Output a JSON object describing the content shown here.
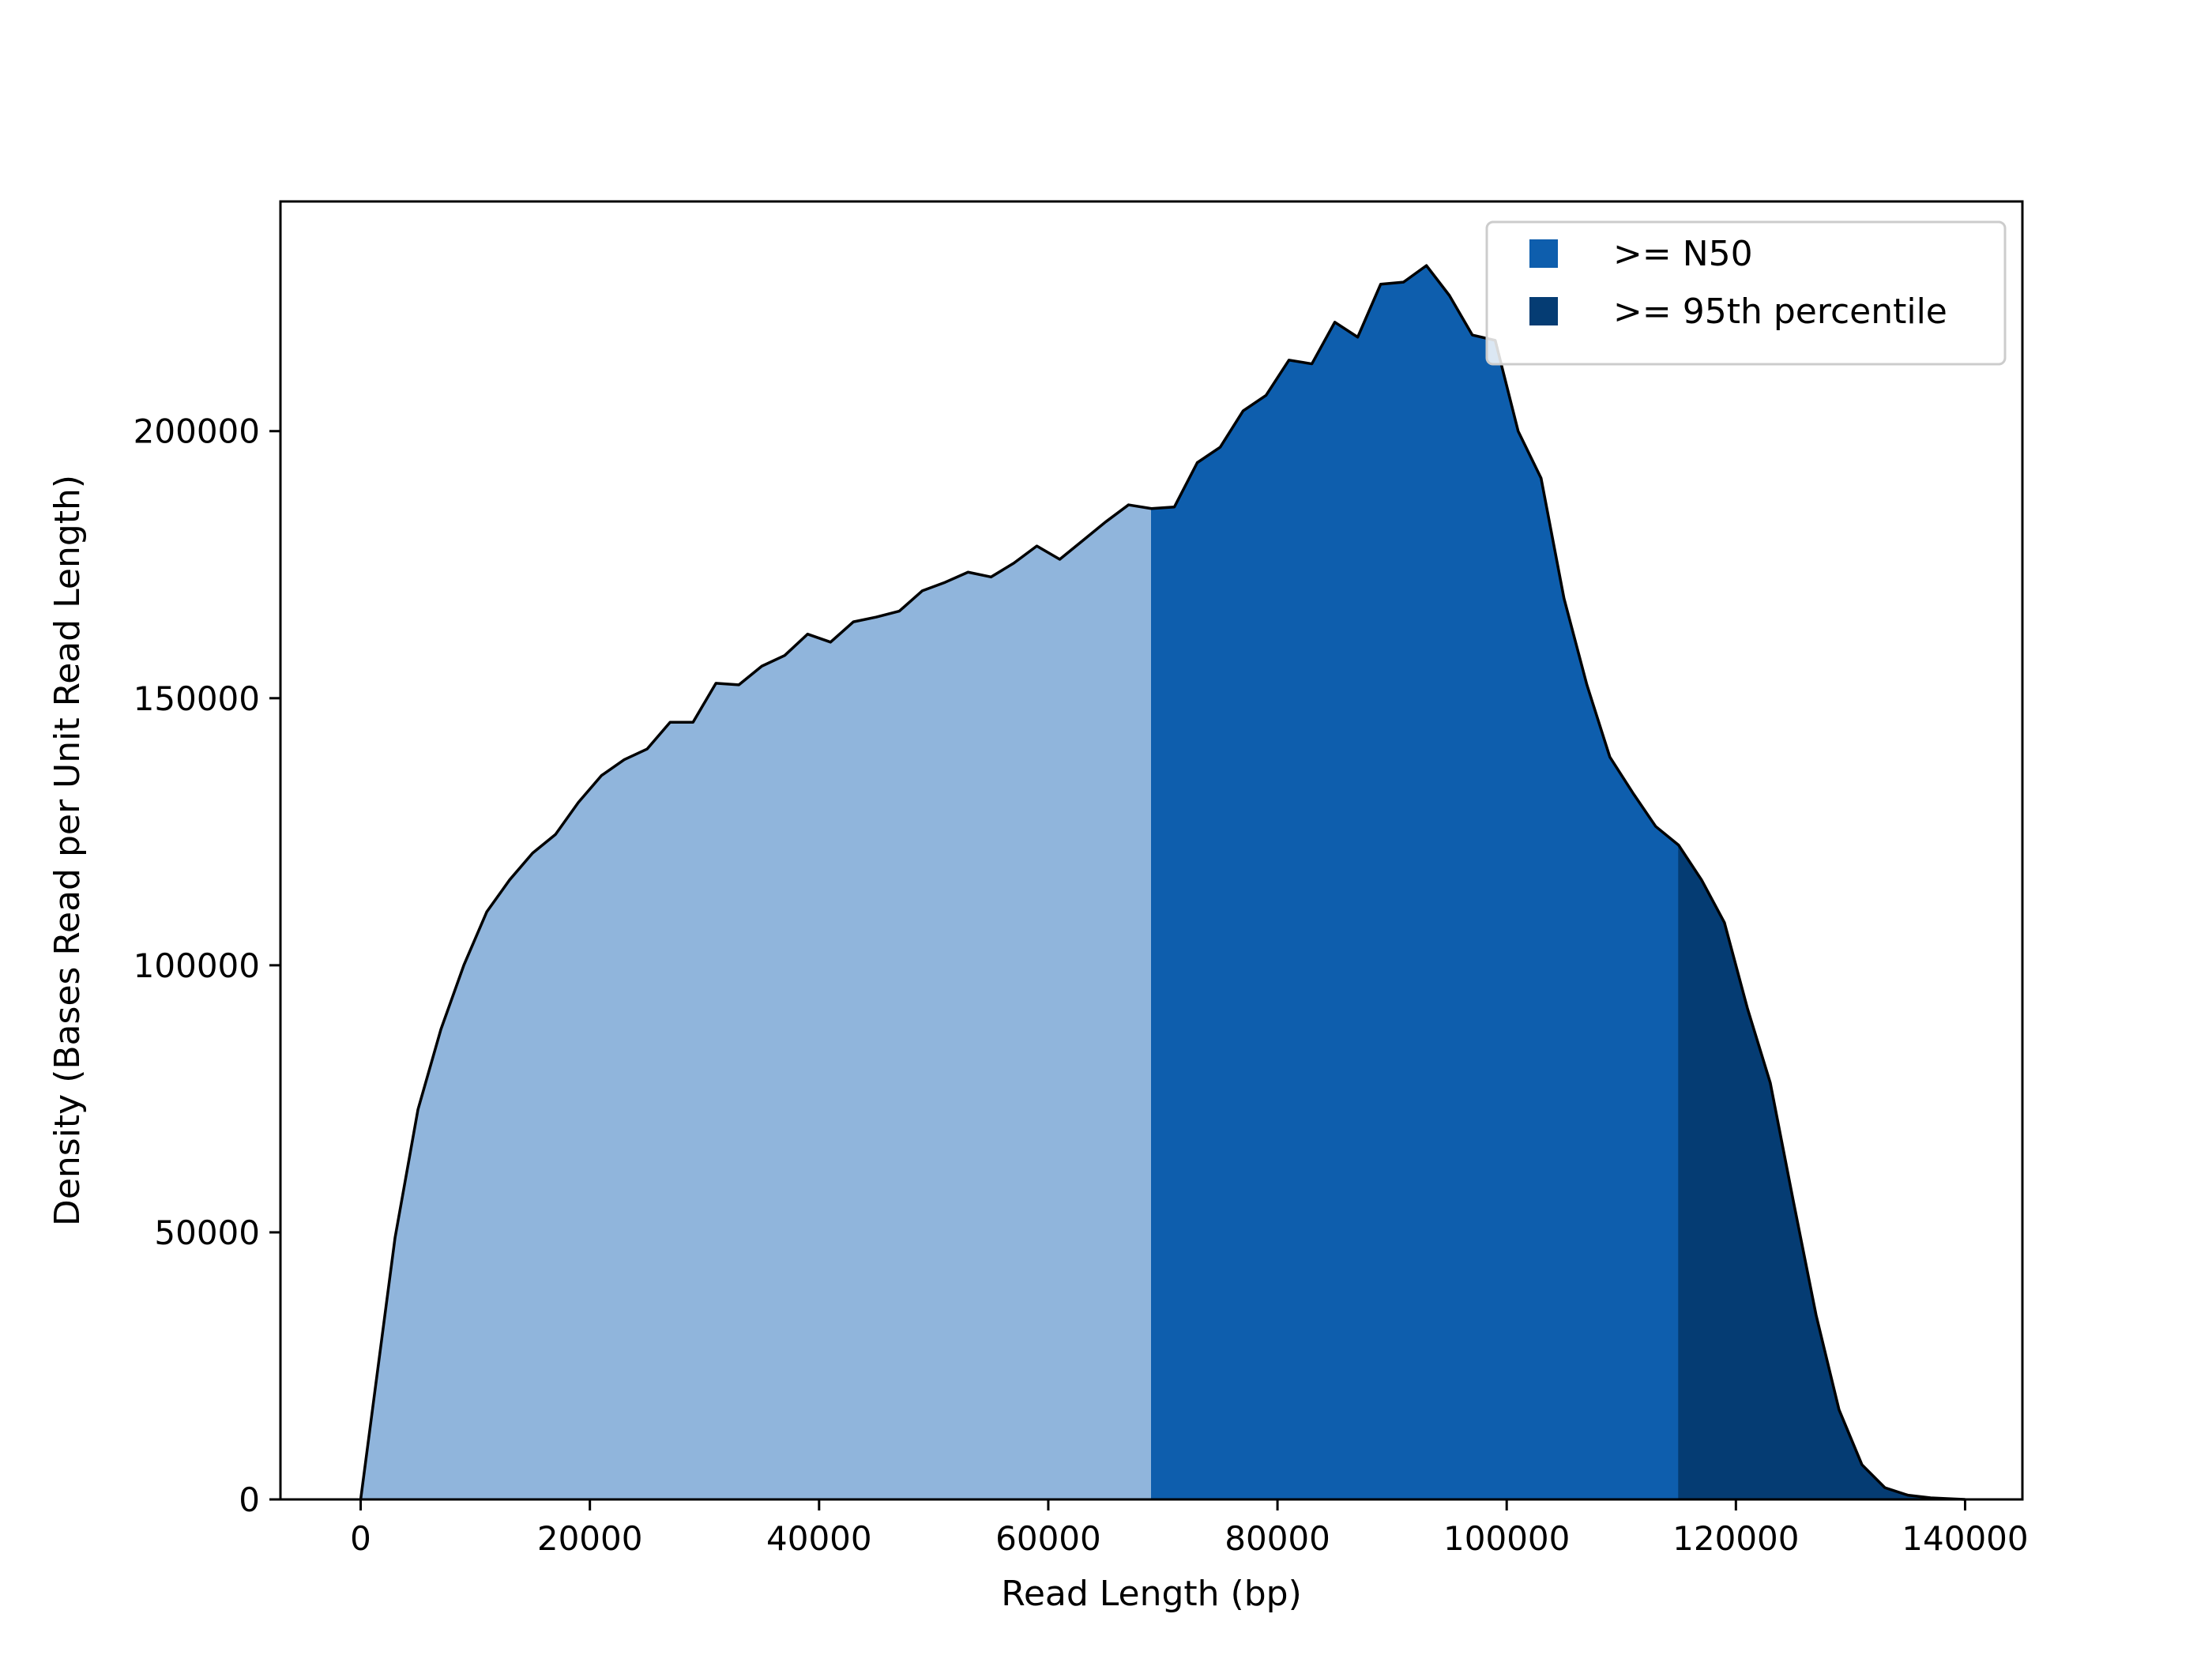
{
  "chart_data": {
    "type": "area",
    "title": "",
    "xlabel": "Read Length (bp)",
    "ylabel": "Density (Bases Read per Unit Read Length)",
    "xlim": [
      -7000,
      145000
    ],
    "ylim": [
      0,
      243000
    ],
    "xticks": [
      0,
      20000,
      40000,
      60000,
      80000,
      100000,
      120000,
      140000
    ],
    "xtick_labels": [
      "0",
      "20000",
      "40000",
      "60000",
      "80000",
      "100000",
      "120000",
      "140000"
    ],
    "yticks": [
      0,
      50000,
      100000,
      150000,
      200000
    ],
    "ytick_labels": [
      "0",
      "50000",
      "100000",
      "150000",
      "200000"
    ],
    "grid": false,
    "legend_position": "top-right",
    "regions": [
      {
        "name": "",
        "from": 0,
        "to": 69000,
        "color": "#90b5dc"
      },
      {
        "name": ">= N50",
        "from": 69000,
        "to": 115000,
        "color": "#0e5ead"
      },
      {
        "name": ">= 95th percentile",
        "from": 115000,
        "to": 140000,
        "color": "#053c73"
      }
    ],
    "line_color": "#000000",
    "x": [
      0,
      3000,
      5000,
      7000,
      9000,
      11000,
      13000,
      15000,
      17000,
      19000,
      21000,
      23000,
      25000,
      27000,
      29000,
      31000,
      33000,
      35000,
      37000,
      39000,
      41000,
      43000,
      45000,
      47000,
      49000,
      51000,
      53000,
      55000,
      57000,
      59000,
      61000,
      63000,
      65000,
      67000,
      69000,
      71000,
      73000,
      75000,
      77000,
      79000,
      81000,
      83000,
      85000,
      87000,
      89000,
      91000,
      93000,
      95000,
      97000,
      99000,
      101000,
      103000,
      105000,
      107000,
      109000,
      111000,
      113000,
      115000,
      117000,
      119000,
      121000,
      123000,
      125000,
      127000,
      129000,
      131000,
      133000,
      135000,
      137000,
      139000,
      140000
    ],
    "y": [
      0,
      49000,
      73000,
      88000,
      100000,
      110000,
      116000,
      121000,
      124500,
      130500,
      135500,
      138500,
      140500,
      145500,
      145500,
      152800,
      152500,
      156000,
      158000,
      162000,
      160500,
      164300,
      165200,
      166300,
      170100,
      171700,
      173600,
      172700,
      175300,
      178500,
      176000,
      179500,
      183000,
      186200,
      185500,
      185800,
      194100,
      197000,
      203800,
      206700,
      213300,
      212600,
      220400,
      217600,
      227500,
      227900,
      231000,
      225400,
      218000,
      217000,
      200000,
      191200,
      168700,
      152500,
      139000,
      132300,
      126000,
      122500,
      116000,
      108000,
      92000,
      78000,
      56000,
      34500,
      16800,
      6500,
      2200,
      800,
      300,
      100,
      0
    ]
  }
}
